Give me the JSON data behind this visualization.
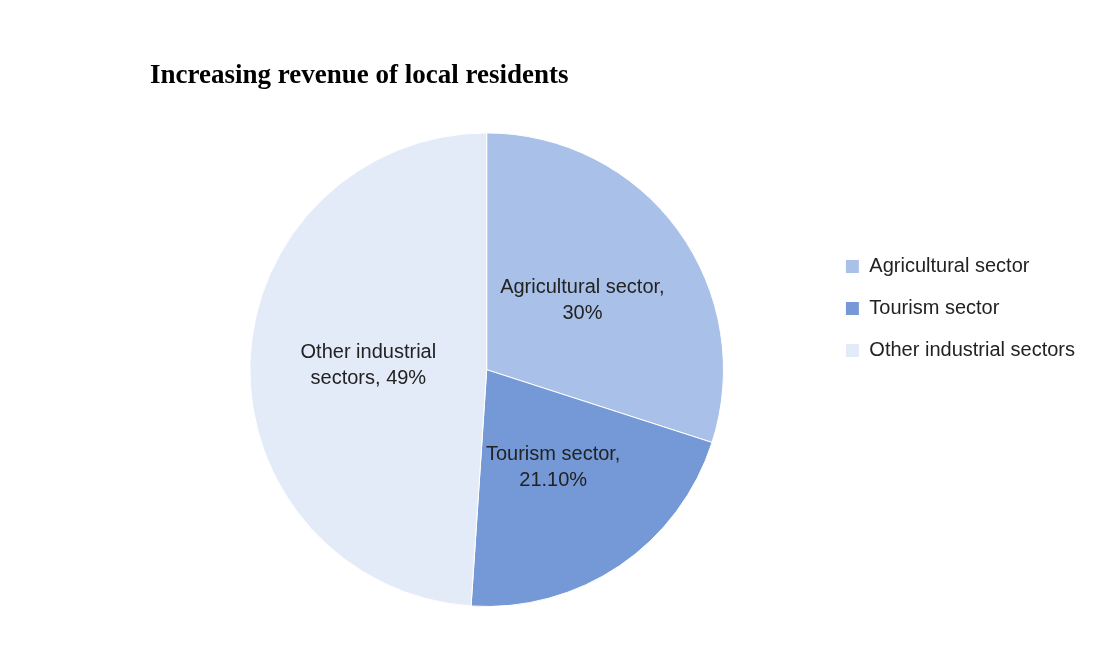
{
  "chart_data": {
    "type": "pie",
    "title": "Increasing revenue of local residents",
    "categories": [
      "Agricultural sector",
      "Tourism sector",
      "Other industrial sectors"
    ],
    "values": [
      30,
      21.1,
      49
    ],
    "value_labels": [
      "Agricultural sector, 30%",
      "Tourism sector, 21.10%",
      "Other industrial sectors, 49%"
    ],
    "colors": [
      "#a9c1e8",
      "#7499d6",
      "#e3ebf8"
    ],
    "legend": "right"
  }
}
